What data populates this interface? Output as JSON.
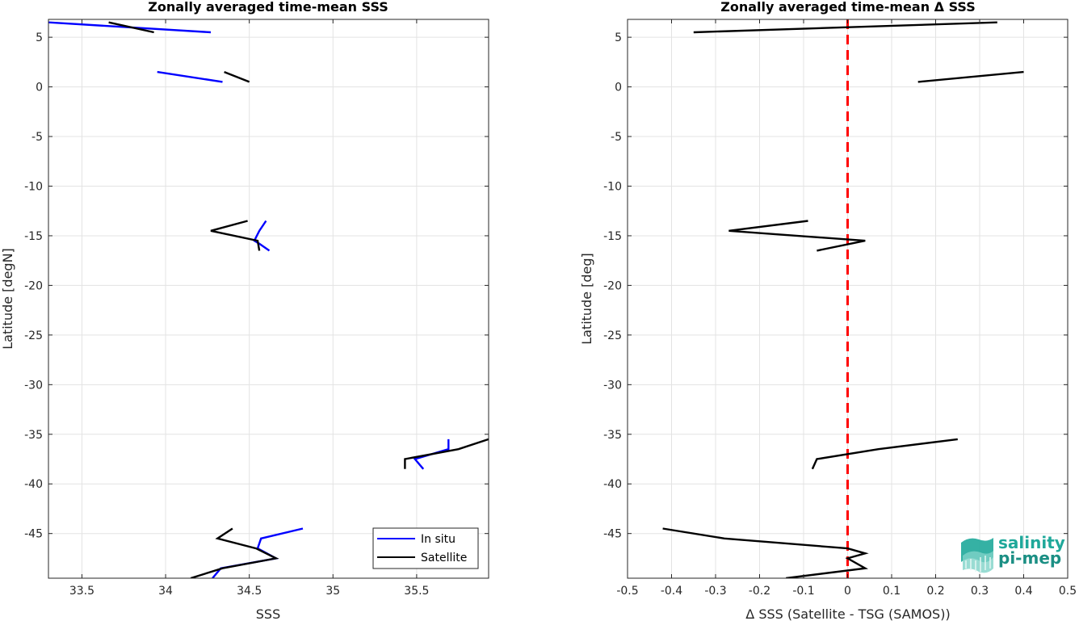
{
  "chart_data": [
    {
      "type": "line",
      "title": "Zonally averaged time-mean SSS",
      "xlabel": "SSS",
      "ylabel": "Latitude [degN]",
      "xlim": [
        33.3,
        35.93
      ],
      "ylim": [
        -49.5,
        6.8
      ],
      "xticks": [
        33.5,
        34,
        34.5,
        35,
        35.5
      ],
      "xtick_labels": [
        "33.5",
        "34",
        "34.5",
        "35",
        "35.5"
      ],
      "yticks": [
        5,
        0,
        -5,
        -10,
        -15,
        -20,
        -25,
        -30,
        -35,
        -40,
        -45
      ],
      "ytick_labels": [
        "5",
        "0",
        "-5",
        "-10",
        "-15",
        "-20",
        "-25",
        "-30",
        "-35",
        "-40",
        "-45"
      ],
      "grid": true,
      "legend": "bottom-right",
      "series": [
        {
          "name": "In situ",
          "color": "#0000ff",
          "segments": [
            [
              [
                33.3,
                6.5
              ],
              [
                34.27,
                5.5
              ]
            ],
            [
              [
                33.95,
                1.5
              ],
              [
                34.34,
                0.5
              ]
            ],
            [
              [
                34.6,
                -13.5
              ],
              [
                34.56,
                -14.5
              ],
              [
                34.53,
                -15.5
              ],
              [
                34.56,
                -15.8
              ],
              [
                34.62,
                -16.5
              ]
            ],
            [
              [
                35.69,
                -35.5
              ],
              [
                35.69,
                -36.5
              ],
              [
                35.49,
                -37.5
              ],
              [
                35.54,
                -38.5
              ]
            ],
            [
              [
                34.82,
                -44.5
              ],
              [
                34.57,
                -45.5
              ],
              [
                34.55,
                -46.5
              ],
              [
                34.66,
                -47.5
              ],
              [
                34.33,
                -48.5
              ],
              [
                34.28,
                -49.5
              ]
            ]
          ]
        },
        {
          "name": "Satellite",
          "color": "#000000",
          "segments": [
            [
              [
                33.66,
                6.5
              ],
              [
                33.93,
                5.5
              ]
            ],
            [
              [
                34.35,
                1.5
              ],
              [
                34.5,
                0.5
              ]
            ],
            [
              [
                34.49,
                -13.5
              ],
              [
                34.27,
                -14.5
              ],
              [
                34.55,
                -15.5
              ],
              [
                34.56,
                -16.5
              ]
            ],
            [
              [
                35.93,
                -35.5
              ],
              [
                35.75,
                -36.5
              ],
              [
                35.43,
                -37.5
              ],
              [
                35.43,
                -38.5
              ]
            ],
            [
              [
                34.4,
                -44.5
              ],
              [
                34.31,
                -45.5
              ],
              [
                34.54,
                -46.5
              ],
              [
                34.66,
                -47.5
              ],
              [
                34.34,
                -48.5
              ],
              [
                34.15,
                -49.5
              ]
            ]
          ]
        }
      ]
    },
    {
      "type": "line",
      "title": "Zonally averaged time-mean Δ SSS",
      "xlabel": "Δ SSS (Satellite - TSG (SAMOS))",
      "ylabel": "Latitude [deg]",
      "xlim": [
        -0.5,
        0.5
      ],
      "ylim": [
        -49.5,
        6.8
      ],
      "xticks": [
        -0.5,
        -0.4,
        -0.3,
        -0.2,
        -0.1,
        0,
        0.1,
        0.2,
        0.3,
        0.4,
        0.5
      ],
      "xtick_labels": [
        "-0.5",
        "-0.4",
        "-0.3",
        "-0.2",
        "-0.1",
        "0",
        "0.1",
        "0.2",
        "0.3",
        "0.4",
        "0.5"
      ],
      "yticks": [
        5,
        0,
        -5,
        -10,
        -15,
        -20,
        -25,
        -30,
        -35,
        -40,
        -45
      ],
      "ytick_labels": [
        "5",
        "0",
        "-5",
        "-10",
        "-15",
        "-20",
        "-25",
        "-30",
        "-35",
        "-40",
        "-45"
      ],
      "grid": true,
      "zero_line": {
        "x": 0,
        "color": "#ff0000",
        "style": "dashed"
      },
      "series": [
        {
          "color": "#000000",
          "segments": [
            [
              [
                0.34,
                6.5
              ],
              [
                -0.35,
                5.5
              ]
            ],
            [
              [
                0.4,
                1.5
              ],
              [
                0.16,
                0.5
              ]
            ],
            [
              [
                -0.09,
                -13.5
              ],
              [
                -0.27,
                -14.5
              ],
              [
                0.04,
                -15.5
              ],
              [
                -0.07,
                -16.5
              ]
            ],
            [
              [
                0.25,
                -35.5
              ],
              [
                0.07,
                -36.5
              ],
              [
                -0.07,
                -37.5
              ],
              [
                -0.08,
                -38.5
              ]
            ],
            [
              [
                -0.42,
                -44.5
              ],
              [
                -0.28,
                -45.5
              ],
              [
                0.0,
                -46.5
              ],
              [
                0.04,
                -47.0
              ],
              [
                0.0,
                -47.5
              ],
              [
                0.04,
                -48.5
              ],
              [
                -0.14,
                -49.5
              ]
            ]
          ]
        }
      ]
    }
  ],
  "logo": {
    "line1": "salinity",
    "line2": "pi-mep",
    "color": "#1fa89a"
  }
}
